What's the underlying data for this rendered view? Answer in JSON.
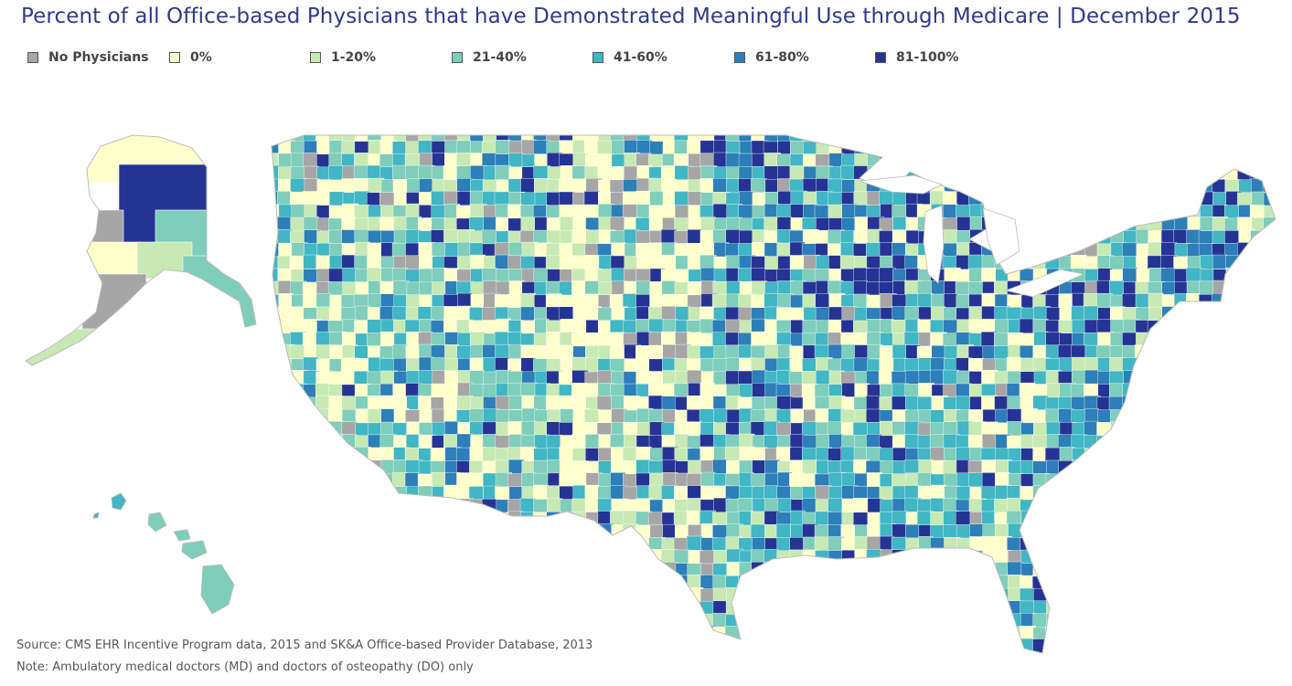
{
  "title": "Percent of all Office-based Physicians that have Demonstrated Meaningful Use through Medicare | December 2015",
  "legend": [
    {
      "label": "No Physicians",
      "color": "#a6a6a6"
    },
    {
      "label": "0%",
      "color": "#ffffcc"
    },
    {
      "label": "1-20%",
      "color": "#c7e9b4"
    },
    {
      "label": "21-40%",
      "color": "#7fcdbb"
    },
    {
      "label": "41-60%",
      "color": "#41b6c4"
    },
    {
      "label": "61-80%",
      "color": "#2c7fb8"
    },
    {
      "label": "81-100%",
      "color": "#253494"
    }
  ],
  "source": "Source: CMS EHR Incentive Program data, 2015 and SK&A Office-based Provider Database, 2013",
  "note": "Note: Ambulatory medical doctors (MD) and doctors of osteopathy (DO) only"
}
